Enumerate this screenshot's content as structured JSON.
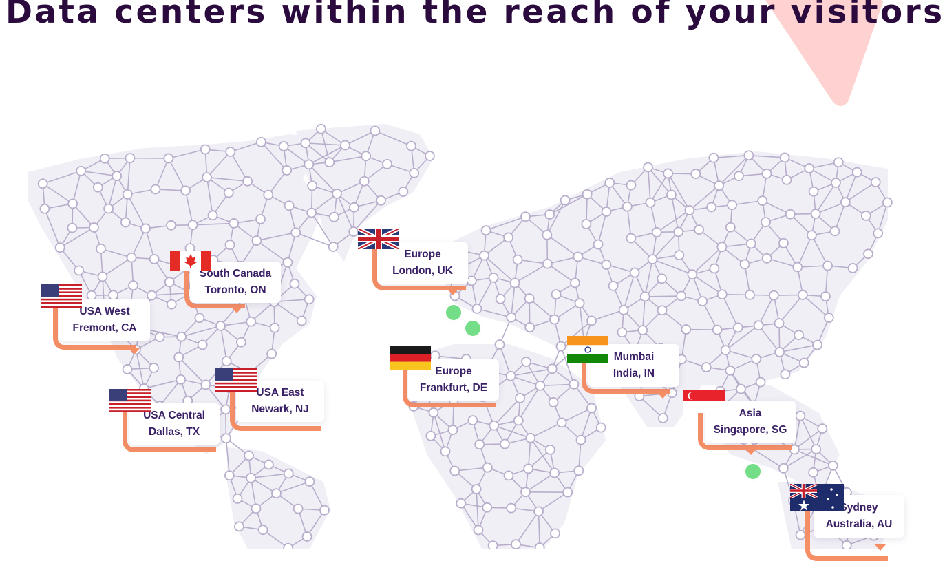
{
  "heading": "Data centers within the reach of your visitors",
  "colors": {
    "heading": "#2b0a3d",
    "label_text": "#3a2066",
    "connector": "#f68f66",
    "marker": "#74dd87",
    "map_node": "#b8aecb",
    "accent_shape": "#ffd2d2"
  },
  "datacenters": [
    {
      "id": "usa-west",
      "region": "USA West",
      "city": "Fremont, CA",
      "flag": "us-flag-icon"
    },
    {
      "id": "south-canada",
      "region": "South Canada",
      "city": "Toronto, ON",
      "flag": "ca-flag-icon"
    },
    {
      "id": "usa-central",
      "region": "USA Central",
      "city": "Dallas, TX",
      "flag": "us-flag-icon"
    },
    {
      "id": "usa-east",
      "region": "USA East",
      "city": "Newark, NJ",
      "flag": "us-flag-icon"
    },
    {
      "id": "europe-london",
      "region": "Europe",
      "city": "London, UK",
      "flag": "uk-flag-icon"
    },
    {
      "id": "europe-frankfurt",
      "region": "Europe",
      "city": "Frankfurt, DE",
      "flag": "de-flag-icon"
    },
    {
      "id": "mumbai",
      "region": "Mumbai",
      "city": "India, IN",
      "flag": "in-flag-icon"
    },
    {
      "id": "asia-singapore",
      "region": "Asia",
      "city": "Singapore, SG",
      "flag": "sg-flag-icon"
    },
    {
      "id": "sydney",
      "region": "Sydney",
      "city": "Australia, AU",
      "flag": "au-flag-icon"
    }
  ]
}
